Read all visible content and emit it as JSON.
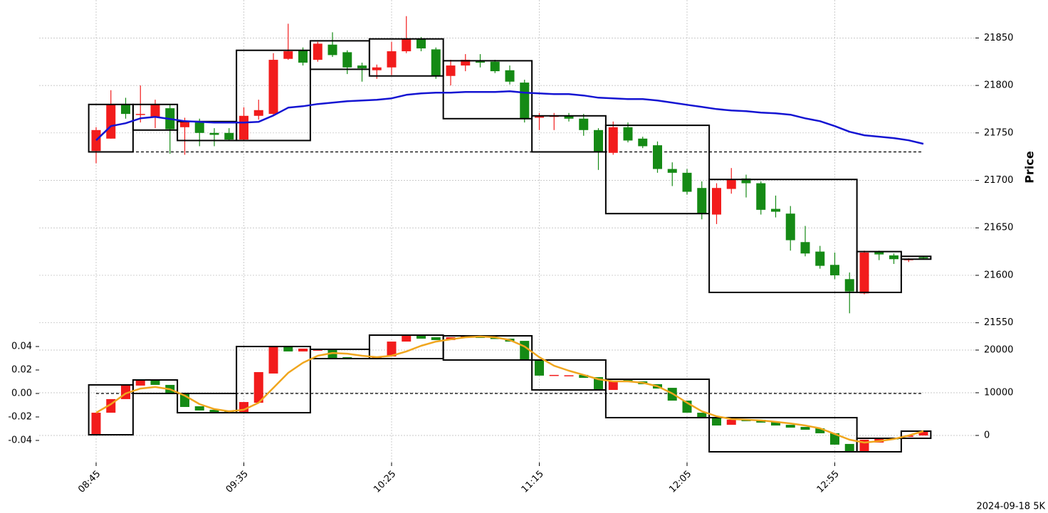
{
  "chart_data": [
    {
      "type": "candlestick",
      "ylabel": "Price",
      "ylim": [
        21549,
        21890
      ],
      "yticks": [
        21550,
        21600,
        21650,
        21700,
        21750,
        21800,
        21850
      ],
      "grid": true,
      "up_color": "#f21c1c",
      "down_color": "#158a15",
      "open": [
        21731,
        21744,
        21780,
        21770,
        21766,
        21776,
        21756,
        21761,
        21750,
        21750,
        21743,
        21768,
        21770,
        21828,
        21837,
        21827,
        21843,
        21835,
        21821,
        21816,
        21819,
        21836,
        21849,
        21838,
        21810,
        21821,
        21826,
        21825,
        21816,
        21803,
        21766,
        21767,
        21768,
        21765,
        21753,
        21729,
        21756,
        21744,
        21737,
        21712,
        21708,
        21692,
        21664,
        21691,
        21702,
        21697,
        21670,
        21665,
        21635,
        21625,
        21611,
        21596,
        21581,
        21625,
        21621,
        21616,
        21619
      ],
      "high": [
        21756,
        21795,
        21787,
        21800,
        21785,
        21780,
        21766,
        21765,
        21755,
        21755,
        21777,
        21785,
        21834,
        21865,
        21840,
        21846,
        21856,
        21837,
        21824,
        21822,
        21846,
        21873,
        21851,
        21840,
        21827,
        21833,
        21833,
        21827,
        21821,
        21806,
        21771,
        21771,
        21771,
        21770,
        21755,
        21762,
        21761,
        21746,
        21741,
        21719,
        21712,
        21699,
        21697,
        21713,
        21706,
        21699,
        21684,
        21673,
        21652,
        21631,
        21624,
        21603,
        21626,
        21626,
        21623,
        21618,
        21620
      ],
      "low": [
        21718,
        21744,
        21765,
        21761,
        21755,
        21728,
        21727,
        21736,
        21736,
        21742,
        21742,
        21764,
        21768,
        21827,
        21821,
        21825,
        21830,
        21812,
        21804,
        21807,
        21811,
        21834,
        21836,
        21807,
        21800,
        21815,
        21819,
        21813,
        21801,
        21761,
        21753,
        21753,
        21762,
        21747,
        21711,
        21727,
        21740,
        21734,
        21708,
        21694,
        21685,
        21659,
        21654,
        21686,
        21682,
        21664,
        21661,
        21626,
        21620,
        21607,
        21596,
        21560,
        21580,
        21616,
        21612,
        21614,
        21617
      ],
      "close": [
        21753,
        21780,
        21770,
        21770,
        21780,
        21754,
        21762,
        21750,
        21748,
        21743,
        21768,
        21774,
        21827,
        21836,
        21824,
        21844,
        21832,
        21819,
        21818,
        21819,
        21836,
        21849,
        21839,
        21810,
        21821,
        21827,
        21824,
        21815,
        21804,
        21765,
        21768,
        21768,
        21765,
        21753,
        21730,
        21756,
        21742,
        21736,
        21712,
        21708,
        21688,
        21665,
        21692,
        21701,
        21697,
        21669,
        21667,
        21637,
        21623,
        21610,
        21600,
        21583,
        21624,
        21622,
        21617,
        21617,
        21618
      ],
      "boxes": [
        {
          "start": 0,
          "end": 2,
          "high": 21780,
          "low": 21730
        },
        {
          "start": 3,
          "end": 5,
          "high": 21780,
          "low": 21753
        },
        {
          "start": 6,
          "end": 9,
          "high": 21762,
          "low": 21742
        },
        {
          "start": 10,
          "end": 14,
          "high": 21837,
          "low": 21742
        },
        {
          "start": 15,
          "end": 18,
          "high": 21847,
          "low": 21817
        },
        {
          "start": 19,
          "end": 23,
          "high": 21849,
          "low": 21810
        },
        {
          "start": 24,
          "end": 29,
          "high": 21826,
          "low": 21765
        },
        {
          "start": 30,
          "end": 34,
          "high": 21768,
          "low": 21730
        },
        {
          "start": 35,
          "end": 41,
          "high": 21758,
          "low": 21665
        },
        {
          "start": 42,
          "end": 51,
          "high": 21701,
          "low": 21582
        },
        {
          "start": 52,
          "end": 54,
          "high": 21625,
          "low": 21582
        },
        {
          "start": 55,
          "end": 56,
          "high": 21620,
          "low": 21617
        }
      ],
      "reference_line": 21730,
      "line": {
        "color": "#1414d2",
        "values": [
          21742.2,
          21757.2,
          21760.2,
          21765.4,
          21766.9,
          21764.7,
          21762.4,
          21761.7,
          21760.9,
          21760.9,
          21760.9,
          21761.7,
          21768.4,
          21776.6,
          21778.1,
          21780.4,
          21781.9,
          21783.4,
          21784.1,
          21784.9,
          21786.4,
          21790.1,
          21791.6,
          21792.4,
          21792.4,
          21793.1,
          21793.1,
          21793.1,
          21793.9,
          21792.4,
          21791.6,
          21790.9,
          21790.9,
          21789.4,
          21787.1,
          21786.4,
          21785.6,
          21785.6,
          21784.1,
          21781.9,
          21779.6,
          21777.4,
          21775.1,
          21773.6,
          21772.9,
          21771.4,
          21770.7,
          21769.2,
          21765.4,
          21762.4,
          21757.2,
          21751.2,
          21747.5,
          21746.0,
          21744.5,
          21742.2,
          21738.5
        ]
      }
    },
    {
      "type": "candlestick",
      "ylim": [
        -0.0588,
        0.0594
      ],
      "yticks": [
        -0.04,
        -0.02,
        {
          "value": 0,
          "label": "0.00"
        },
        0.02,
        0.04
      ],
      "y2lim": [
        -6333,
        26167
      ],
      "y2ticks": [
        0,
        10000,
        20000
      ],
      "grid": true,
      "up_color": "#f21c1c",
      "down_color": "#158a15",
      "categories": [
        "08:45",
        null,
        null,
        null,
        null,
        null,
        null,
        null,
        null,
        null,
        "09:35",
        null,
        null,
        null,
        null,
        null,
        null,
        null,
        null,
        null,
        "10:25",
        null,
        null,
        null,
        null,
        null,
        null,
        null,
        null,
        null,
        "11:15",
        null,
        null,
        null,
        null,
        null,
        null,
        null,
        null,
        null,
        "12:05",
        null,
        null,
        null,
        null,
        null,
        null,
        null,
        null,
        null,
        "12:55",
        null,
        null,
        null,
        null,
        null,
        null
      ],
      "open": [
        -0.0352,
        -0.0164,
        -0.0048,
        0.0067,
        0.0115,
        0.0073,
        0.0,
        -0.0109,
        -0.0139,
        -0.0145,
        -0.0164,
        -0.0079,
        0.017,
        0.04,
        0.0358,
        0.0364,
        0.0376,
        0.0309,
        0.0303,
        0.03,
        0.0315,
        0.0442,
        0.0497,
        0.0479,
        0.0455,
        0.0479,
        0.0485,
        0.0473,
        0.0467,
        0.0448,
        0.0291,
        0.0152,
        0.0152,
        0.0158,
        0.0139,
        0.003,
        0.0115,
        0.0103,
        0.0079,
        0.0048,
        -0.0061,
        -0.0164,
        -0.0206,
        -0.0267,
        -0.0224,
        -0.0224,
        -0.0242,
        -0.0267,
        -0.0285,
        -0.0297,
        -0.0339,
        -0.043,
        -0.0491,
        -0.0418,
        -0.0382,
        -0.037,
        -0.0358
      ],
      "close": [
        -0.0164,
        -0.0048,
        0.0067,
        0.0115,
        0.0073,
        0.0006,
        -0.0115,
        -0.0145,
        -0.0164,
        -0.0164,
        -0.0073,
        0.0182,
        0.0406,
        0.0358,
        0.0382,
        0.0382,
        0.0303,
        0.0297,
        0.03,
        0.0315,
        0.0442,
        0.0497,
        0.0467,
        0.0455,
        0.0479,
        0.0485,
        0.0473,
        0.0467,
        0.0442,
        0.0279,
        0.0152,
        0.0158,
        0.0155,
        0.0133,
        0.0036,
        0.0109,
        0.0097,
        0.0079,
        0.0042,
        -0.0061,
        -0.0164,
        -0.0212,
        -0.0273,
        -0.0224,
        -0.0236,
        -0.0248,
        -0.0273,
        -0.0291,
        -0.0309,
        -0.0339,
        -0.0436,
        -0.0497,
        -0.0394,
        -0.0382,
        -0.0388,
        -0.0358,
        -0.0321
      ],
      "boxes": [
        {
          "start": 0,
          "end": 2,
          "high": 0.0073,
          "low": -0.0352
        },
        {
          "start": 3,
          "end": 5,
          "high": 0.0115,
          "low": 0
        },
        {
          "start": 6,
          "end": 9,
          "high": 0,
          "low": -0.0164
        },
        {
          "start": 10,
          "end": 14,
          "high": 0.04,
          "low": -0.0164
        },
        {
          "start": 15,
          "end": 18,
          "high": 0.0376,
          "low": 0.0297
        },
        {
          "start": 19,
          "end": 23,
          "high": 0.0497,
          "low": 0.0297
        },
        {
          "start": 24,
          "end": 29,
          "high": 0.0491,
          "low": 0.0285
        },
        {
          "start": 30,
          "end": 34,
          "high": 0.0285,
          "low": 0.003
        },
        {
          "start": 35,
          "end": 41,
          "high": 0.0121,
          "low": -0.0206
        },
        {
          "start": 42,
          "end": 51,
          "high": -0.0206,
          "low": -0.0497
        },
        {
          "start": 52,
          "end": 54,
          "high": -0.0382,
          "low": -0.0497
        },
        {
          "start": 55,
          "end": 56,
          "high": -0.0321,
          "low": -0.0382
        }
      ],
      "reference_line": 0,
      "line": {
        "color": "#f0a61e",
        "values": [
          -0.0164,
          -0.0091,
          0,
          0.0042,
          0.0055,
          0.0036,
          -0.0018,
          -0.0091,
          -0.0133,
          -0.0152,
          -0.0139,
          -0.0079,
          0.0048,
          0.0176,
          0.0261,
          0.0321,
          0.0345,
          0.0339,
          0.0321,
          0.0309,
          0.0321,
          0.0358,
          0.0406,
          0.0442,
          0.0461,
          0.0479,
          0.0485,
          0.0479,
          0.0455,
          0.04,
          0.0309,
          0.0236,
          0.0194,
          0.0158,
          0.0121,
          0.0103,
          0.0103,
          0.0091,
          0.0061,
          0,
          -0.0079,
          -0.0152,
          -0.0194,
          -0.0218,
          -0.0224,
          -0.023,
          -0.0242,
          -0.0255,
          -0.0273,
          -0.0297,
          -0.0345,
          -0.0394,
          -0.0418,
          -0.0406,
          -0.0388,
          -0.0358,
          -0.0321
        ]
      },
      "annotation": "2024-09-18 5K"
    }
  ]
}
